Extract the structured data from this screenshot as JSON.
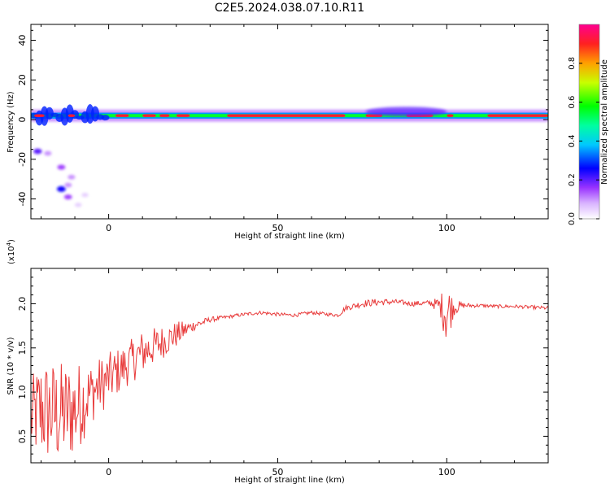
{
  "title": "C2E5.2024.038.07.10.R11",
  "chart_data": [
    {
      "type": "heatmap",
      "xlabel": "Height of straight line (km)",
      "ylabel": "Frequency (Hz)",
      "xlim": [
        -23,
        130
      ],
      "ylim": [
        -50,
        48
      ],
      "x_ticks": [
        0,
        50,
        100
      ],
      "y_ticks": [
        -40,
        -20,
        0,
        20,
        40
      ],
      "colorbar": {
        "label": "Normalized spectral amplitude",
        "range": [
          0.0,
          1.0
        ],
        "ticks": [
          "0.0",
          "0.2",
          "0.4",
          "0.6",
          "0.8"
        ]
      },
      "main_band": {
        "frequency_hz": 2,
        "x_start": -23,
        "x_end": 130,
        "peak_amplitude": 0.95,
        "high_amplitude_segments": [
          [
            -22,
            -19
          ],
          [
            -12,
            -10
          ],
          [
            2,
            6
          ],
          [
            10,
            14
          ],
          [
            15,
            18
          ],
          [
            20,
            24
          ],
          [
            35,
            70
          ],
          [
            76,
            81
          ],
          [
            88,
            96
          ],
          [
            100,
            102
          ],
          [
            112,
            130
          ]
        ]
      },
      "low_frequency_blobs": [
        {
          "x": -21,
          "y": -16,
          "amp": 0.2
        },
        {
          "x": -18,
          "y": -17,
          "amp": 0.1
        },
        {
          "x": -14,
          "y": -24,
          "amp": 0.15
        },
        {
          "x": -14,
          "y": -35,
          "amp": 0.25
        },
        {
          "x": -12,
          "y": -33,
          "amp": 0.1
        },
        {
          "x": -12,
          "y": -39,
          "amp": 0.15
        },
        {
          "x": -11,
          "y": -29,
          "amp": 0.1
        },
        {
          "x": -7,
          "y": -38,
          "amp": 0.05
        },
        {
          "x": -9,
          "y": -43,
          "amp": 0.05
        }
      ]
    },
    {
      "type": "line",
      "xlabel": "Height of straight line (km)",
      "ylabel": "SNR (10 * v/v)",
      "y_multiplier_label": "(x10",
      "y_multiplier_exp": "4",
      "y_multiplier_close": ")",
      "xlim": [
        -23,
        130
      ],
      "ylim": [
        0.2,
        2.4
      ],
      "x_ticks": [
        0,
        50,
        100
      ],
      "y_ticks": [
        "0.5",
        "1.0",
        "1.5",
        "2.0"
      ],
      "color": "#e83a3a",
      "x": [
        -23,
        -20,
        -15,
        -10,
        -5,
        0,
        5,
        10,
        15,
        20,
        25,
        30,
        35,
        40,
        45,
        50,
        55,
        60,
        65,
        68,
        70,
        75,
        80,
        85,
        90,
        95,
        98,
        100,
        102,
        105,
        110,
        115,
        120,
        125,
        130
      ],
      "y": [
        0.7,
        0.8,
        0.75,
        0.8,
        1.0,
        1.15,
        1.3,
        1.45,
        1.55,
        1.65,
        1.75,
        1.82,
        1.85,
        1.88,
        1.9,
        1.88,
        1.87,
        1.9,
        1.88,
        1.87,
        1.95,
        2.0,
        2.02,
        2.02,
        2.0,
        2.01,
        1.98,
        1.9,
        1.96,
        1.98,
        1.98,
        1.97,
        1.97,
        1.96,
        1.95
      ],
      "noise_amplitude": [
        0.45,
        0.6,
        0.6,
        0.55,
        0.35,
        0.3,
        0.25,
        0.25,
        0.2,
        0.15,
        0.06,
        0.03,
        0.02,
        0.02,
        0.02,
        0.02,
        0.02,
        0.02,
        0.02,
        0.02,
        0.03,
        0.04,
        0.04,
        0.03,
        0.03,
        0.03,
        0.1,
        0.4,
        0.1,
        0.03,
        0.02,
        0.02,
        0.02,
        0.02,
        0.02
      ]
    }
  ]
}
